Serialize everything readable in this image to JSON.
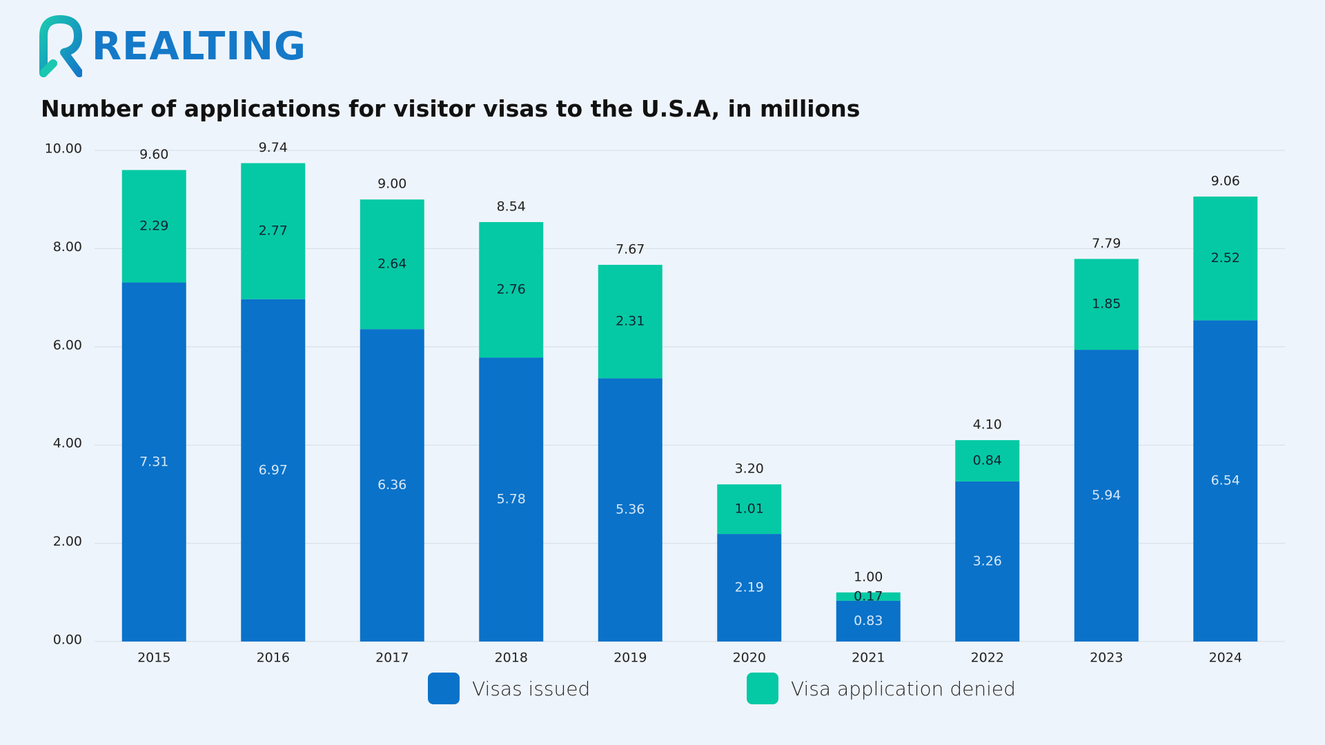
{
  "brand": {
    "name": "REALTING"
  },
  "chart_data": {
    "type": "bar",
    "stacked": true,
    "title": "Number of applications for visitor visas to the U.S.A, in millions",
    "categories": [
      "2015",
      "2016",
      "2017",
      "2018",
      "2019",
      "2020",
      "2021",
      "2022",
      "2023",
      "2024"
    ],
    "series": [
      {
        "name": "Visas issued",
        "color": "#0A72C9",
        "values": [
          7.31,
          6.97,
          6.36,
          5.78,
          5.36,
          2.19,
          0.83,
          3.26,
          5.94,
          6.54
        ]
      },
      {
        "name": "Visa application denied",
        "color": "#05C9A4",
        "values": [
          2.29,
          2.77,
          2.64,
          2.76,
          2.31,
          1.01,
          0.17,
          0.84,
          1.85,
          2.52
        ]
      }
    ],
    "totals": [
      9.6,
      9.74,
      9.0,
      8.54,
      7.67,
      3.2,
      1.0,
      4.1,
      7.79,
      9.06
    ],
    "yticks": [
      "0.00",
      "2.00",
      "4.00",
      "6.00",
      "8.00",
      "10.00"
    ],
    "ylim": [
      0,
      10
    ],
    "grid": true,
    "legend_position": "bottom"
  }
}
